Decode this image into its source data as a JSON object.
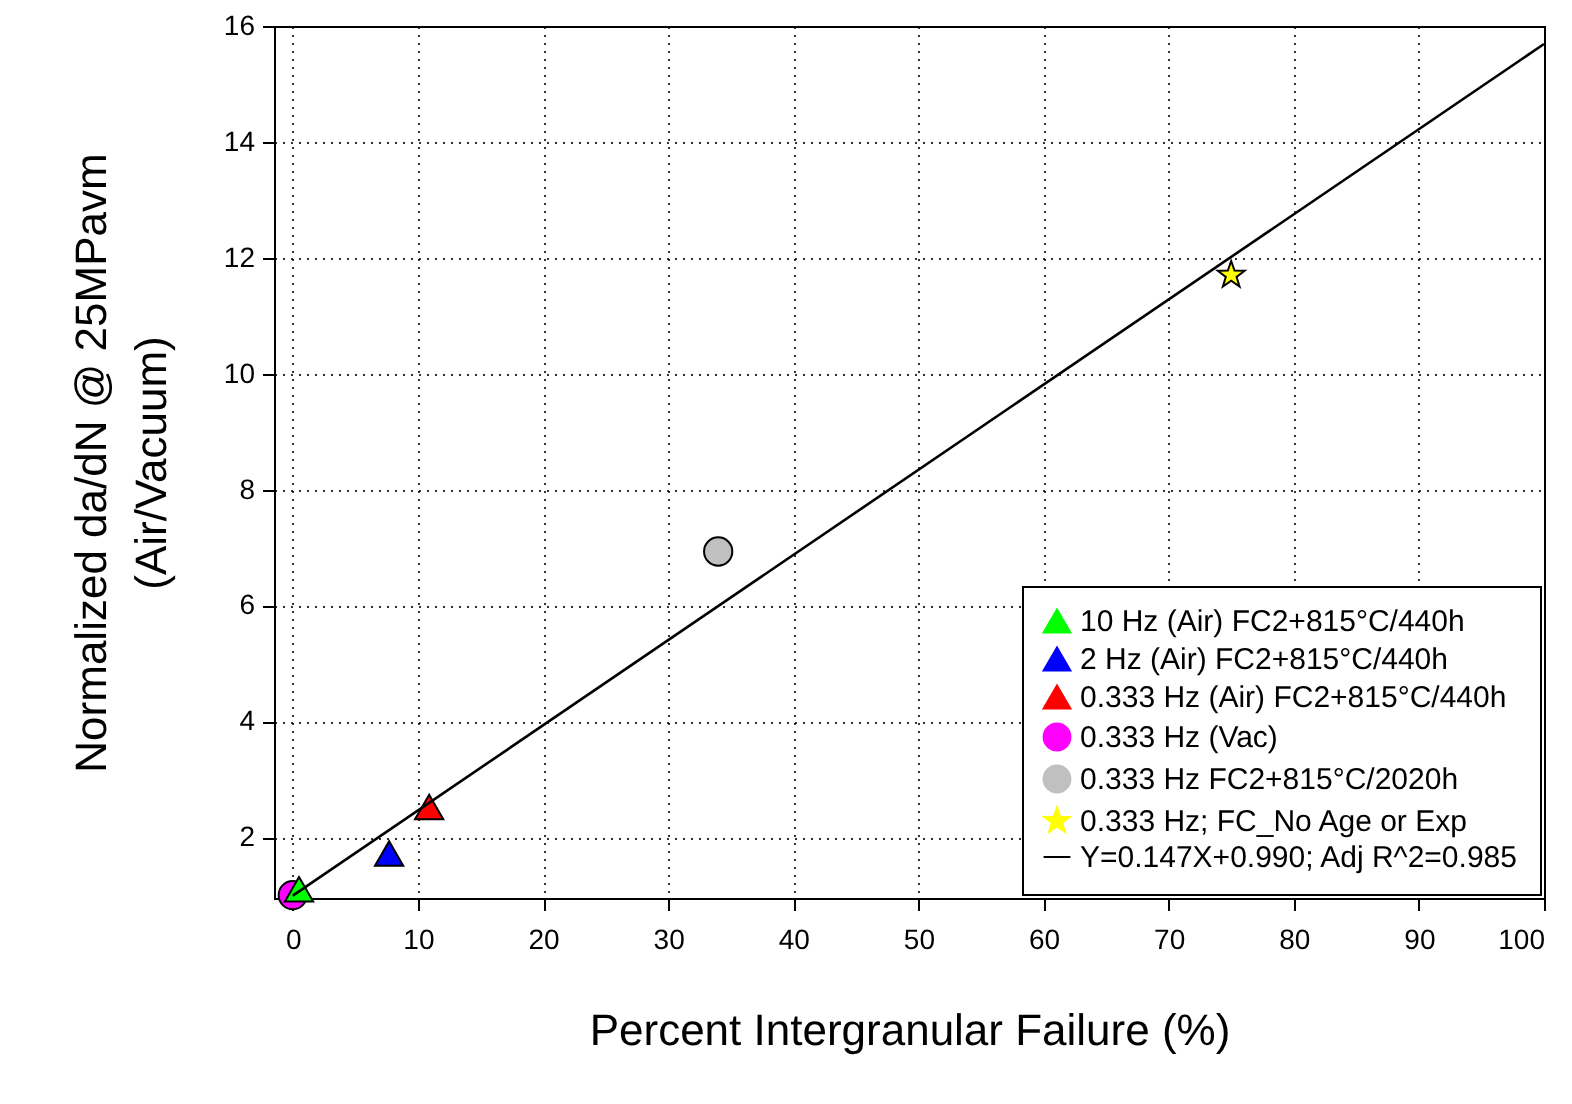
{
  "chart_data": {
    "type": "scatter",
    "xlabel": "Percent Intergranular Failure (%)",
    "ylabel": "Normalized da/dN @ 25MPavm\n(Air/Vacuum)",
    "xlim": [
      -1.5,
      100
    ],
    "ylim": [
      0.95,
      16
    ],
    "xticks": [
      0,
      10,
      20,
      30,
      40,
      50,
      60,
      70,
      80,
      90,
      100
    ],
    "yticks": [
      2,
      4,
      6,
      8,
      10,
      12,
      14,
      16
    ],
    "grid": true,
    "legend": "bottom right",
    "series": [
      {
        "name": "10 Hz (Air) FC2+815°C/440h",
        "color": "#00ff00",
        "marker": "triangle",
        "x": [
          0.5
        ],
        "values": [
          1.1
        ]
      },
      {
        "name": "2 Hz (Air) FC2+815°C/440h",
        "color": "#0000ff",
        "marker": "triangle",
        "x": [
          7.7
        ],
        "values": [
          1.72
        ]
      },
      {
        "name": "0.333 Hz (Air) FC2+815°C/440h",
        "color": "#ff0000",
        "marker": "triangle",
        "x": [
          10.9
        ],
        "values": [
          2.52
        ]
      },
      {
        "name": "0.333 Hz (Vac)",
        "color": "#ff00ff",
        "marker": "circle",
        "x": [
          0
        ],
        "values": [
          1.0
        ]
      },
      {
        "name": "0.333 Hz FC2+815°C/2020h",
        "color": "#c0c0c0",
        "marker": "circle",
        "x": [
          34
        ],
        "values": [
          6.93
        ]
      },
      {
        "name": "0.333 Hz; FC_No Age or Exp",
        "color": "#ffff00",
        "marker": "star",
        "x": [
          75
        ],
        "values": [
          11.7
        ]
      },
      {
        "name": "Y=0.147X+0.990; Adj R^2=0.985",
        "type": "line",
        "color": "#000000",
        "x": [
          0,
          100
        ],
        "values": [
          0.99,
          15.69
        ]
      }
    ]
  }
}
